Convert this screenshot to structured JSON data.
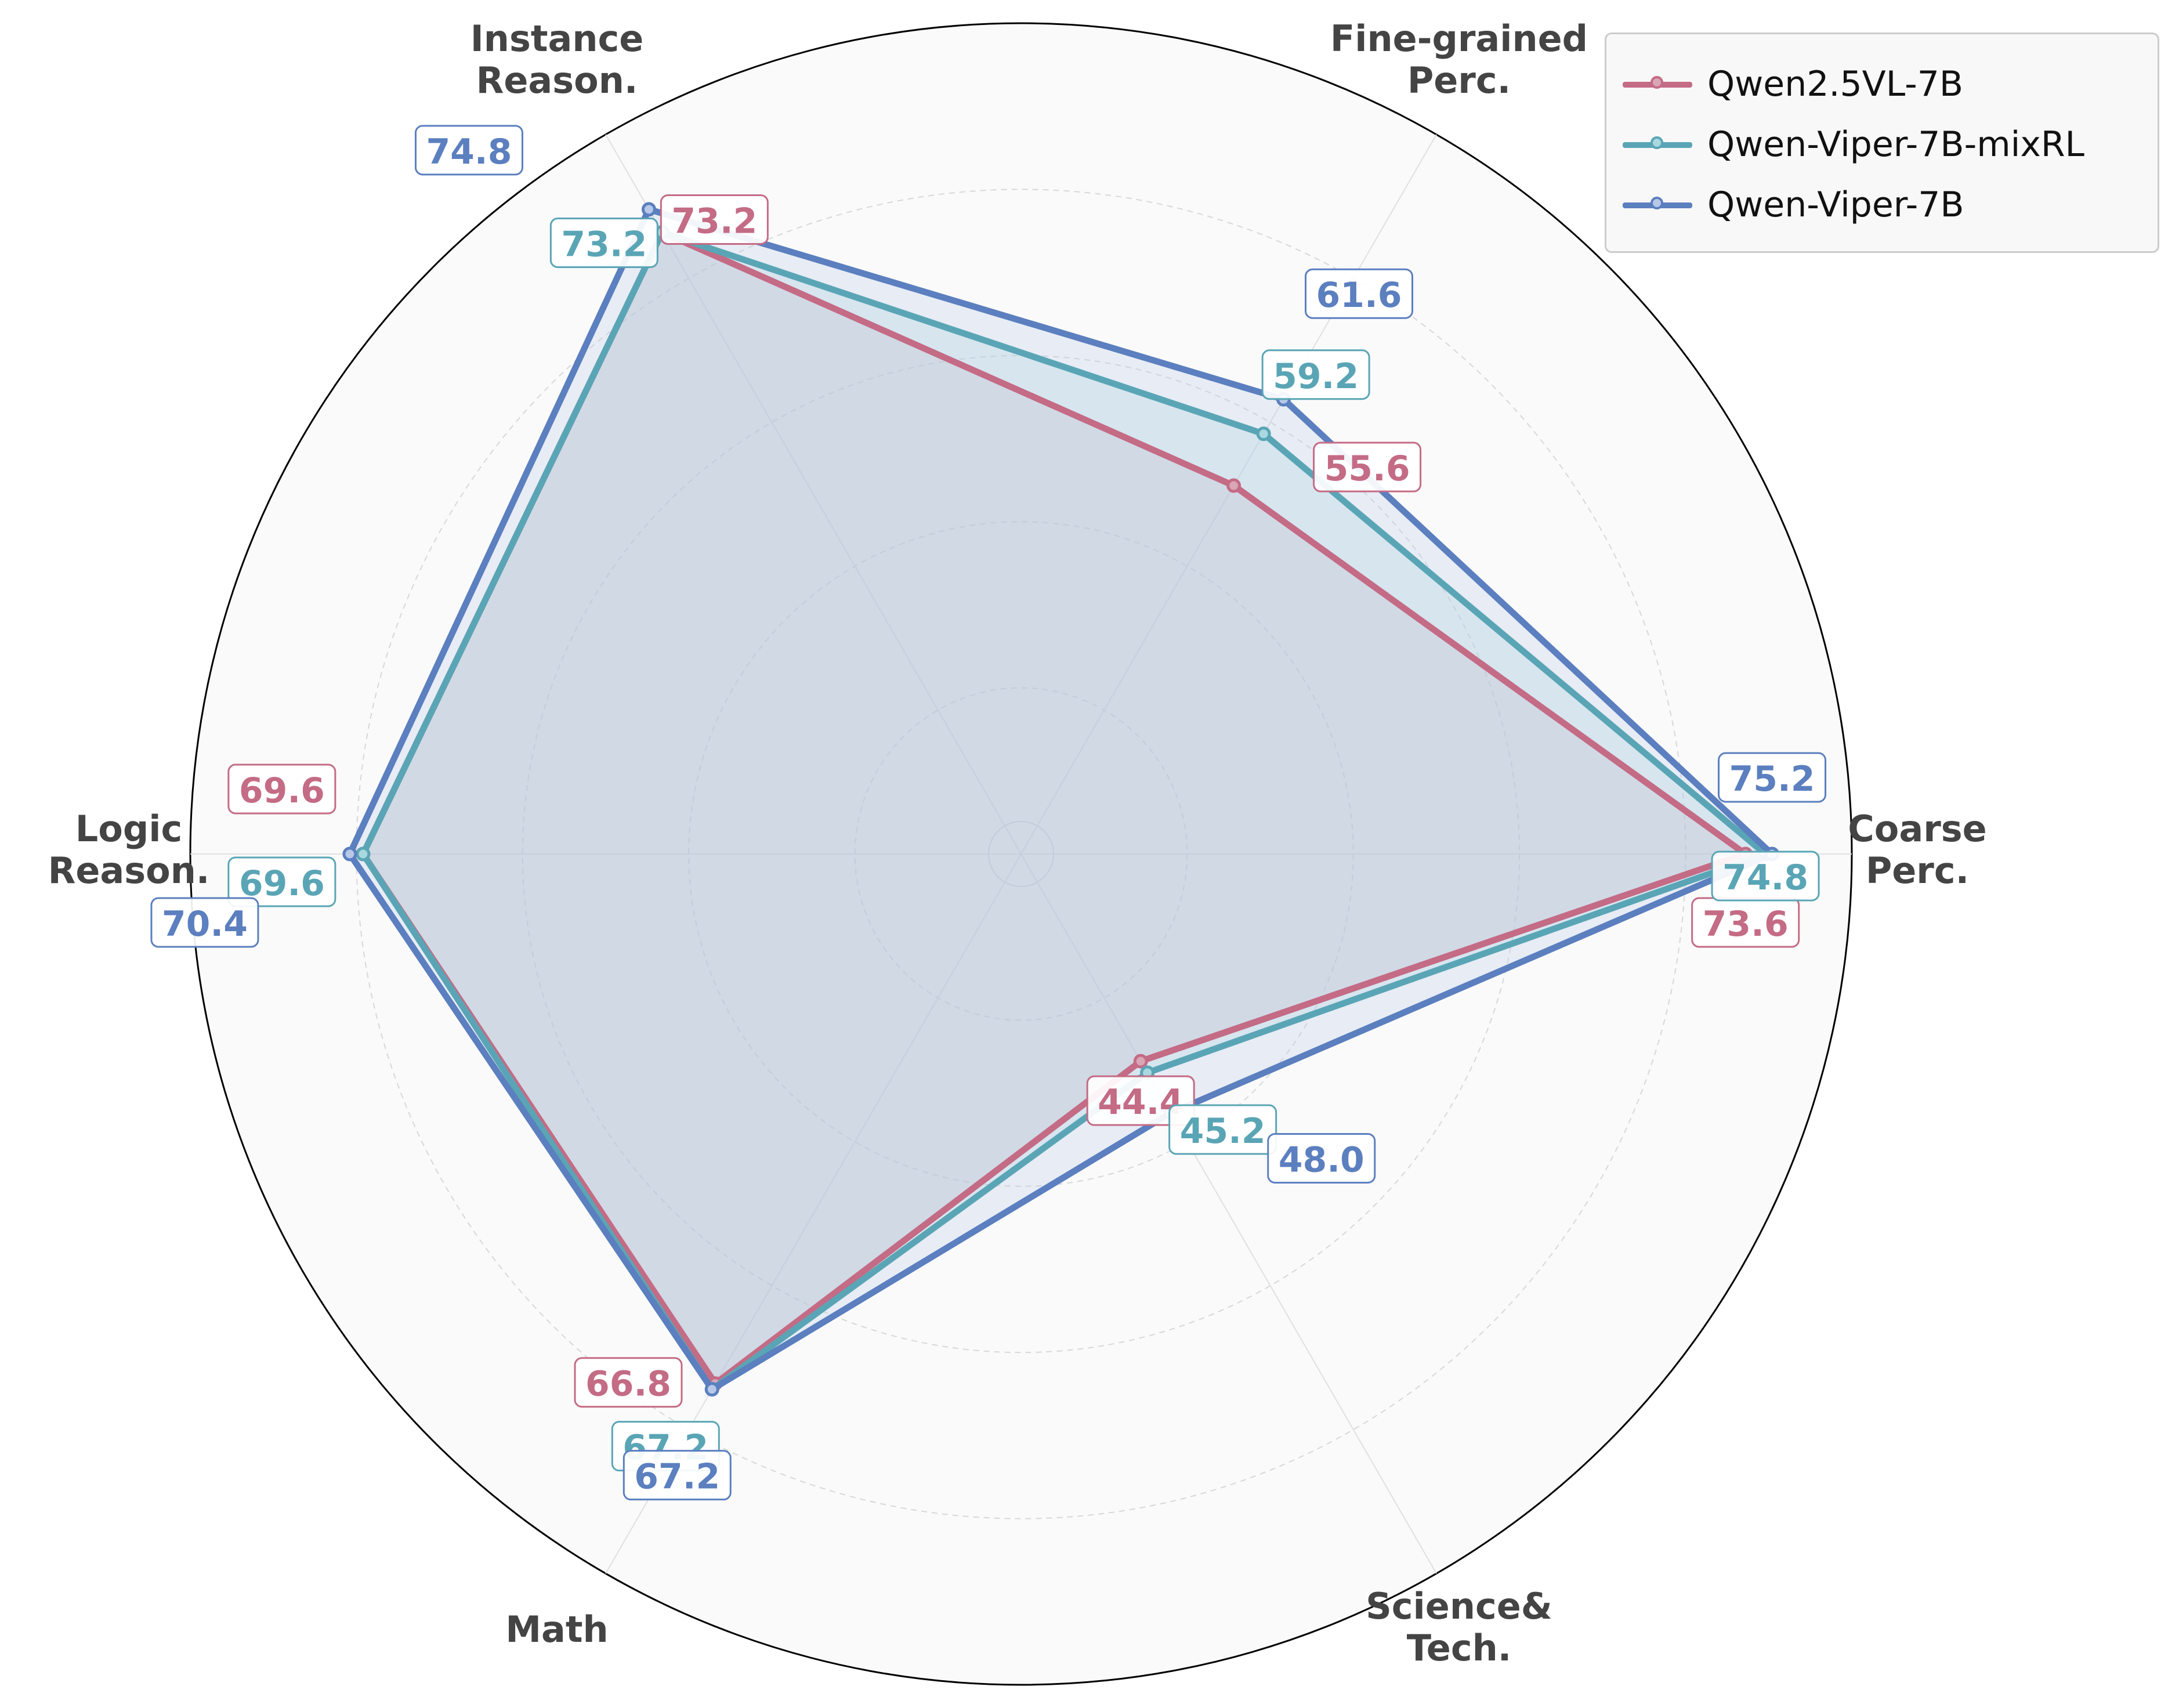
{
  "chart_data": {
    "type": "radar",
    "title": "",
    "axes": [
      {
        "key": "coarse",
        "label_lines": [
          "Coarse",
          "Perc."
        ]
      },
      {
        "key": "fine",
        "label_lines": [
          "Fine-grained",
          "Perc."
        ]
      },
      {
        "key": "instance",
        "label_lines": [
          "Instance",
          "Reason."
        ]
      },
      {
        "key": "logic",
        "label_lines": [
          "Logic",
          "Reason."
        ]
      },
      {
        "key": "math",
        "label_lines": [
          "Math"
        ]
      },
      {
        "key": "science",
        "label_lines": [
          "Science&",
          "Tech."
        ]
      }
    ],
    "radial_range": [
      30,
      80
    ],
    "grid": true,
    "legend_position": "top-right",
    "series": [
      {
        "name": "Qwen2.5VL-7B",
        "color": "#c46b85",
        "fill": "#d8a6b6",
        "values": [
          73.6,
          55.6,
          73.2,
          69.6,
          66.8,
          44.4
        ],
        "labels": [
          "73.6",
          "55.6",
          "73.2",
          "69.6",
          "66.8",
          "44.4"
        ]
      },
      {
        "name": "Qwen-Viper-7B-mixRL",
        "color": "#5aa5b5",
        "fill": "#a9d8e0",
        "values": [
          74.8,
          59.2,
          73.2,
          69.6,
          67.2,
          45.2
        ],
        "labels": [
          "74.8",
          "59.2",
          "73.2",
          "69.6",
          "67.2",
          "45.2"
        ]
      },
      {
        "name": "Qwen-Viper-7B",
        "color": "#5b7fbf",
        "fill": "#b7c8e8",
        "values": [
          75.2,
          61.6,
          74.8,
          70.4,
          67.2,
          48.0
        ],
        "labels": [
          "75.2",
          "61.6",
          "74.8",
          "70.4",
          "67.2",
          "48.0"
        ]
      }
    ]
  }
}
